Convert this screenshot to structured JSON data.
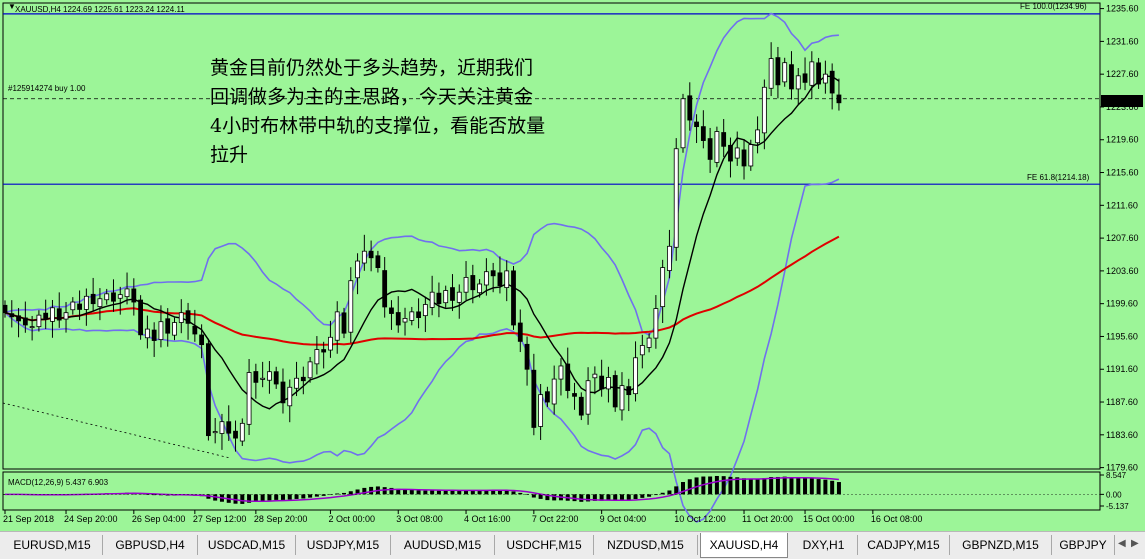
{
  "header": {
    "symbol_info": "XAUUSD,H4  1224.69 1225.61 1223.24 1224.11",
    "position_label": "#125914274 buy 1.00"
  },
  "levels": {
    "fe100": "FE 100.0(1234.96)",
    "fe618": "FE 61.8(1214.18)"
  },
  "current_price": "1224.11",
  "note_lines": [
    "黄金目前仍然处于多头趋势，近期我们",
    "回调做多为主的主思路，今天关注黄金",
    "4小时布林带中轨的支撑位，看能否放量",
    "拉升"
  ],
  "macd": {
    "label": "MACD(12,26,9) 5.437 6.903",
    "ticks": [
      "8.547",
      "0.00",
      "-5.137"
    ]
  },
  "colors": {
    "background": "#9cf598",
    "bull_candle": "#ffffff",
    "bear_candle": "#000000",
    "bollinger": "#7070ee",
    "ma_slow": "#e00000",
    "ma_fast": "#000000",
    "fe_line": "#0000cc",
    "macd_signal": "#9900cc"
  },
  "chart_data": {
    "type": "candlestick",
    "symbol": "XAUUSD",
    "timeframe": "H4",
    "y_ticks": [
      1235.6,
      1231.6,
      1227.6,
      1223.6,
      1219.6,
      1215.6,
      1211.6,
      1207.6,
      1203.6,
      1199.6,
      1195.6,
      1191.6,
      1187.6,
      1183.6,
      1179.6
    ],
    "y_tick_labels": [
      "1235.60",
      "1231.60",
      "1227.60",
      "1223.60",
      "1219.60",
      "1215.60",
      "1211.60",
      "1207.60",
      "1203.60",
      "1199.60",
      "1195.60",
      "1191.60",
      "1187.60",
      "1183.60",
      "1179.60"
    ],
    "ylim": [
      1179.6,
      1235.6
    ],
    "x_ticks": [
      "21 Sep 2018",
      "24 Sep 20:00",
      "26 Sep 04:00",
      "27 Sep 12:00",
      "28 Sep 20:00",
      "2 Oct 00:00",
      "3 Oct 08:00",
      "4 Oct 16:00",
      "7 Oct 22:00",
      "9 Oct 04:00",
      "10 Oct 12:00",
      "11 Oct 20:00",
      "15 Oct 00:00",
      "16 Oct 08:00"
    ],
    "x_tick_candle_index": [
      0,
      9,
      19,
      28,
      37,
      48,
      58,
      68,
      78,
      88,
      99,
      109,
      118,
      128
    ],
    "horizontal_levels": [
      {
        "label": "FE 100.0(1234.96)",
        "value": 1234.96
      },
      {
        "label": "FE 61.8(1214.18)",
        "value": 1214.18
      },
      {
        "label": "#125914274 buy 1.00",
        "value": 1224.6
      }
    ],
    "candles_close": [
      1198.5,
      1198.0,
      1197.5,
      1197.0,
      1196.8,
      1198.2,
      1197.8,
      1199.1,
      1197.6,
      1198.5,
      1199.8,
      1198.9,
      1200.5,
      1199.6,
      1200.2,
      1200.8,
      1199.9,
      1200.7,
      1201.4,
      1199.8,
      1195.8,
      1196.5,
      1195.1,
      1197.4,
      1196.0,
      1197.3,
      1198.5,
      1197.2,
      1195.9,
      1194.6,
      1183.5,
      1184.0,
      1185.2,
      1183.8,
      1183.2,
      1185.0,
      1191.2,
      1190.0,
      1190.5,
      1191.3,
      1189.8,
      1187.5,
      1189.4,
      1190.5,
      1190.2,
      1192.5,
      1194.0,
      1193.7,
      1195.5,
      1198.6,
      1196.0,
      1202.4,
      1204.8,
      1206.0,
      1205.2,
      1204.0,
      1199.2,
      1198.4,
      1197.0,
      1197.8,
      1198.6,
      1197.9,
      1199.5,
      1201.0,
      1199.6,
      1201.2,
      1200.0,
      1201.0,
      1202.8,
      1201.3,
      1202.0,
      1203.5,
      1203.0,
      1201.8,
      1203.6,
      1197.0,
      1195.0,
      1191.6,
      1184.5,
      1188.5,
      1187.6,
      1190.4,
      1192.0,
      1189.0,
      1188.3,
      1186.0,
      1190.2,
      1191.0,
      1189.2,
      1190.6,
      1187.0,
      1189.6,
      1188.5,
      1193.0,
      1194.5,
      1195.4,
      1199.0,
      1204.0,
      1206.6,
      1218.5,
      1224.6,
      1222.0,
      1221.2,
      1219.5,
      1217.2,
      1220.6,
      1218.8,
      1217.0,
      1218.6,
      1216.4,
      1219.0,
      1220.8,
      1226.0,
      1229.5,
      1226.3,
      1229.0,
      1225.8,
      1227.4,
      1226.6,
      1229.1,
      1226.4,
      1227.6,
      1225.3,
      1224.11
    ],
    "indicators": [
      "Bollinger Bands",
      "MA (fast, black)",
      "MA (slow, red)"
    ],
    "macd": {
      "params": "12,26,9",
      "macd": 5.437,
      "signal": 6.903,
      "ylim": [
        -5.137,
        8.547
      ]
    },
    "grid": false
  },
  "tabs": [
    {
      "label": "EURUSD,M15",
      "active": false
    },
    {
      "label": "GBPUSD,H4",
      "active": false
    },
    {
      "label": "USDCAD,M15",
      "active": false
    },
    {
      "label": "USDJPY,M15",
      "active": false
    },
    {
      "label": "AUDUSD,M15",
      "active": false
    },
    {
      "label": "USDCHF,M15",
      "active": false
    },
    {
      "label": "NZDUSD,M15",
      "active": false
    },
    {
      "label": "XAUUSD,H4",
      "active": true
    },
    {
      "label": "DXY,H1",
      "active": false
    },
    {
      "label": "CADJPY,M15",
      "active": false
    },
    {
      "label": "GBPNZD,M15",
      "active": false
    },
    {
      "label": "GBPJPY",
      "active": false
    }
  ],
  "tab_nav": {
    "prev": "◀",
    "next": "▶"
  }
}
